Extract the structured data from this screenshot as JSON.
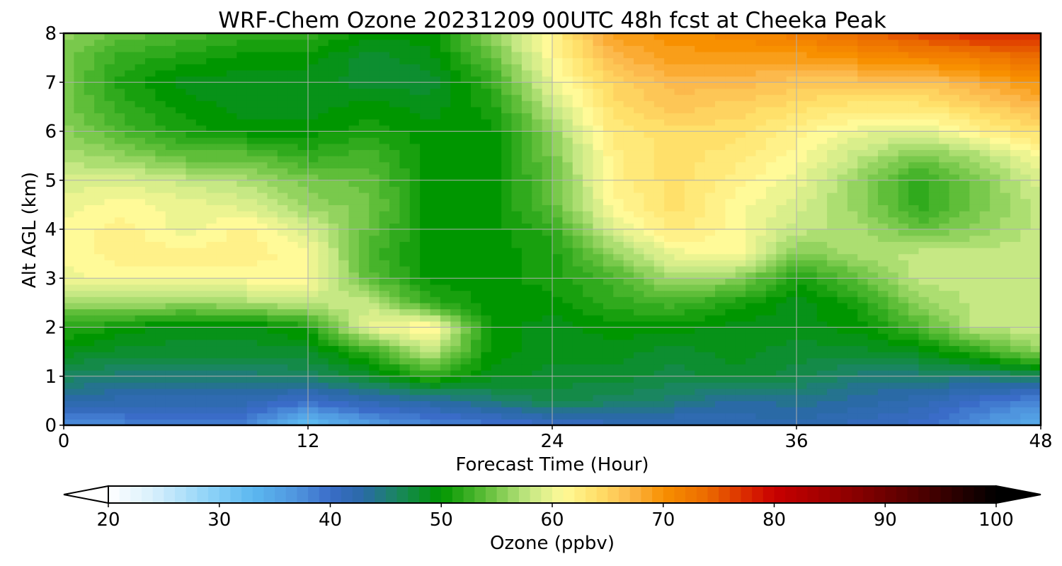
{
  "chart_data": {
    "type": "heatmap",
    "title": "WRF-Chem Ozone  20231209 00UTC 48h fcst at Cheeka Peak",
    "xlabel": "Forecast Time (Hour)",
    "ylabel": "Alt AGL (km)",
    "xlim": [
      0,
      48
    ],
    "ylim": [
      0,
      8
    ],
    "x_ticks": [
      "0",
      "12",
      "24",
      "36",
      "48"
    ],
    "y_ticks": [
      "0",
      "1",
      "2",
      "3",
      "4",
      "5",
      "6",
      "7",
      "8"
    ],
    "grid": true,
    "colorbar": {
      "label": "Ozone  (ppbv)",
      "min": 20,
      "max": 100,
      "ticks": [
        "20",
        "30",
        "40",
        "50",
        "60",
        "70",
        "80",
        "90",
        "100"
      ],
      "extend": "both",
      "placement": "bottom"
    },
    "colormap": {
      "stops": [
        [
          20,
          "#ffffff"
        ],
        [
          24,
          "#d8f0fc"
        ],
        [
          29,
          "#8fd3f8"
        ],
        [
          33,
          "#5cb8f0"
        ],
        [
          37,
          "#4f95de"
        ],
        [
          40,
          "#3a6cc8"
        ],
        [
          43,
          "#2a6aa6"
        ],
        [
          46,
          "#1a8660"
        ],
        [
          50,
          "#009600"
        ],
        [
          54,
          "#5fbe39"
        ],
        [
          58,
          "#c6e884"
        ],
        [
          61,
          "#fffa98"
        ],
        [
          64,
          "#ffe06a"
        ],
        [
          67,
          "#fcb94c"
        ],
        [
          70,
          "#f89000"
        ],
        [
          74,
          "#eb6a00"
        ],
        [
          78,
          "#d82000"
        ],
        [
          80,
          "#c80000"
        ],
        [
          87,
          "#8c0000"
        ],
        [
          94,
          "#460000"
        ],
        [
          100,
          "#000000"
        ]
      ]
    },
    "x": [
      0,
      3,
      6,
      9,
      12,
      15,
      18,
      21,
      24,
      27,
      30,
      33,
      36,
      39,
      42,
      45,
      48
    ],
    "y": [
      0,
      0.5,
      1,
      1.5,
      2,
      2.5,
      3,
      3.5,
      4,
      4.5,
      5,
      5.5,
      6,
      6.5,
      7,
      7.5,
      8
    ],
    "z": [
      [
        37,
        38,
        38,
        38,
        32,
        36,
        38,
        39,
        40,
        41,
        41,
        42,
        42,
        41,
        40,
        37,
        34
      ],
      [
        43,
        42,
        42,
        42,
        40,
        42,
        43,
        45,
        47,
        46,
        45,
        43,
        44,
        43,
        42,
        40,
        38
      ],
      [
        46,
        45,
        45,
        45,
        46,
        48,
        52,
        49,
        48,
        48,
        47,
        48,
        47,
        45,
        45,
        45,
        46
      ],
      [
        49,
        48,
        48,
        48,
        48,
        52,
        58,
        50,
        49,
        49,
        48,
        49,
        48,
        48,
        49,
        52,
        56
      ],
      [
        52,
        50,
        49,
        49,
        51,
        60,
        62,
        50,
        49,
        50,
        50,
        49,
        49,
        50,
        53,
        58,
        58
      ],
      [
        56,
        57,
        56,
        57,
        58,
        58,
        52,
        50,
        50,
        52,
        53,
        51,
        49,
        51,
        56,
        58,
        58
      ],
      [
        60,
        61,
        61,
        61,
        61,
        54,
        50,
        50,
        51,
        53,
        57,
        56,
        51,
        54,
        58,
        58,
        58
      ],
      [
        61,
        62,
        62,
        62,
        61,
        53,
        50,
        50,
        51,
        56,
        60,
        61,
        55,
        57,
        58,
        58,
        58
      ],
      [
        61,
        62,
        60,
        62,
        59,
        54,
        50,
        50,
        52,
        59,
        63,
        61,
        58,
        57,
        54,
        56,
        58
      ],
      [
        60,
        61,
        60,
        59,
        56,
        55,
        50,
        50,
        54,
        61,
        64,
        61,
        59,
        56,
        52,
        55,
        58
      ],
      [
        59,
        59,
        58,
        57,
        55,
        54,
        50,
        50,
        54,
        62,
        64,
        62,
        60,
        56,
        52,
        55,
        59
      ],
      [
        57,
        56,
        54,
        54,
        52,
        53,
        50,
        50,
        55,
        62,
        64,
        63,
        61,
        58,
        55,
        57,
        61
      ],
      [
        56,
        53,
        51,
        50,
        50,
        51,
        50,
        50,
        56,
        63,
        64,
        64,
        62,
        60,
        59,
        62,
        64
      ],
      [
        55,
        52,
        50,
        49,
        49,
        50,
        49,
        51,
        58,
        64,
        66,
        65,
        64,
        63,
        63,
        65,
        67
      ],
      [
        55,
        51,
        49,
        49,
        49,
        48,
        48,
        52,
        60,
        65,
        67,
        67,
        66,
        66,
        66,
        68,
        70
      ],
      [
        55,
        52,
        51,
        50,
        50,
        48,
        49,
        54,
        61,
        67,
        69,
        69,
        69,
        70,
        71,
        72,
        74
      ],
      [
        56,
        54,
        53,
        52,
        52,
        50,
        50,
        56,
        62,
        69,
        70,
        71,
        72,
        74,
        76,
        78,
        78
      ]
    ]
  }
}
